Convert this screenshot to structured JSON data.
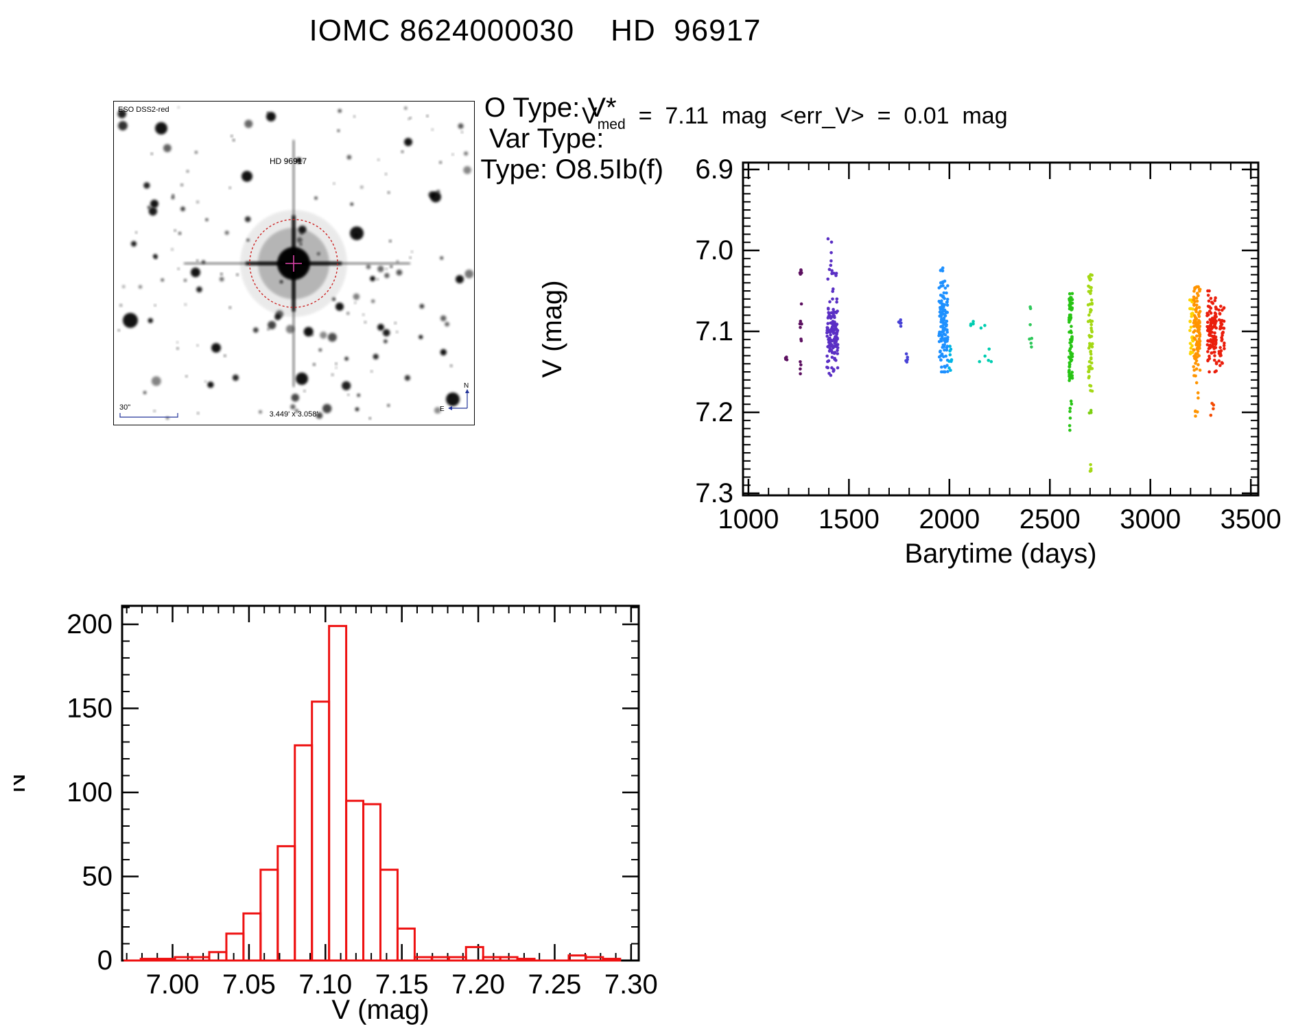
{
  "header": {
    "title": "IOMC 8624000030    HD  96917",
    "fields": [
      {
        "label": "O Type:",
        "value": "V*"
      },
      {
        "label": "Var Type:",
        "value": ""
      },
      {
        "label": "SP Type:",
        "value": "O8.5Ib(f)"
      }
    ],
    "stats": {
      "parts": [
        "V",
        "med",
        "  =  7.11  mag  ",
        "<err_V>",
        "  =  0.01  mag"
      ]
    }
  },
  "finder": {
    "star_label": "HD 96917",
    "survey_label": "ESO DSS2-red",
    "scale_label": "30\"",
    "fov_label": "3.449' x 3.058'",
    "compass_north": "N",
    "compass_east": "E",
    "annotation_color": "#223399",
    "marker_color": "#cc2222",
    "star_seed": 7,
    "star_count": 160,
    "big_stars": [
      [
        70,
        40,
        9
      ],
      [
        195,
        110,
        8
      ],
      [
        355,
        193,
        10
      ],
      [
        120,
        250,
        7
      ],
      [
        25,
        320,
        11
      ],
      [
        275,
        405,
        9
      ],
      [
        470,
        140,
        8
      ],
      [
        495,
        435,
        10
      ],
      [
        230,
        23,
        7
      ],
      [
        430,
        60,
        6
      ],
      [
        60,
        150,
        6
      ],
      [
        330,
        300,
        6
      ],
      [
        150,
        360,
        7
      ],
      [
        390,
        330,
        5
      ],
      [
        505,
        260,
        6
      ]
    ]
  },
  "chart_data": [
    {
      "id": "lightcurve",
      "type": "scatter",
      "title": "",
      "xlabel": "Barytime (days)",
      "ylabel": "V (mag)",
      "x_range": [
        973,
        3537
      ],
      "y_range": [
        6.8915,
        7.3025
      ],
      "y_inverted": true,
      "x_major_ticks": [
        1000,
        1500,
        2000,
        2500,
        3000,
        3500
      ],
      "x_minor_step": 100,
      "y_major_ticks": [
        6.9,
        7.0,
        7.1,
        7.2,
        7.3
      ],
      "y_minor_step": 0.01,
      "grid": false,
      "legend": false,
      "point_radius": 2.3,
      "seed": 42,
      "clusters": [
        {
          "t": [
            1183,
            1193
          ],
          "v": [
            7.125,
            7.14
          ],
          "n": 4,
          "color": "#5c1060",
          "dist": "uniform"
        },
        {
          "t": [
            1256,
            1266
          ],
          "v": [
            7.02,
            7.17
          ],
          "n": 16,
          "color": "#5c1060",
          "dist": "uniform"
        },
        {
          "t": [
            1390,
            1445
          ],
          "v": [
            7.06,
            7.145
          ],
          "n": 120,
          "color": "#5a2fc4",
          "dist": "normal"
        },
        {
          "t": [
            1395,
            1440
          ],
          "v": [
            6.975,
            7.06
          ],
          "n": 14,
          "color": "#5a2fc4",
          "dist": "uniform"
        },
        {
          "t": [
            1400,
            1435
          ],
          "v": [
            7.145,
            7.16
          ],
          "n": 5,
          "color": "#5a2fc4",
          "dist": "uniform"
        },
        {
          "t": [
            1745,
            1760
          ],
          "v": [
            7.085,
            7.095
          ],
          "n": 6,
          "color": "#4741d6",
          "dist": "uniform"
        },
        {
          "t": [
            1782,
            1792
          ],
          "v": [
            7.125,
            7.142
          ],
          "n": 5,
          "color": "#4741d6",
          "dist": "uniform"
        },
        {
          "t": [
            1948,
            1992
          ],
          "v": [
            7.04,
            7.15
          ],
          "n": 120,
          "color": "#1e90ff",
          "dist": "normal"
        },
        {
          "t": [
            1955,
            1985
          ],
          "v": [
            7.02,
            7.045
          ],
          "n": 8,
          "color": "#1e90ff",
          "dist": "uniform"
        },
        {
          "t": [
            1996,
            2012
          ],
          "v": [
            7.115,
            7.148
          ],
          "n": 9,
          "color": "#00b4e4",
          "dist": "uniform"
        },
        {
          "t": [
            2098,
            2120
          ],
          "v": [
            7.085,
            7.1
          ],
          "n": 5,
          "color": "#00cdb0",
          "dist": "uniform"
        },
        {
          "t": [
            2148,
            2210
          ],
          "v": [
            7.09,
            7.152
          ],
          "n": 7,
          "color": "#00cdb0",
          "dist": "uniform"
        },
        {
          "t": [
            2396,
            2410
          ],
          "v": [
            7.06,
            7.122
          ],
          "n": 7,
          "color": "#2ec85a",
          "dist": "uniform"
        },
        {
          "t": [
            2595,
            2612
          ],
          "v": [
            7.05,
            7.162
          ],
          "n": 85,
          "color": "#27c414",
          "dist": "column"
        },
        {
          "t": [
            2598,
            2610
          ],
          "v": [
            7.185,
            7.225
          ],
          "n": 7,
          "color": "#27c414",
          "dist": "uniform"
        },
        {
          "t": [
            2690,
            2712
          ],
          "v": [
            7.025,
            7.175
          ],
          "n": 60,
          "color": "#a4d814",
          "dist": "column"
        },
        {
          "t": [
            2696,
            2706
          ],
          "v": [
            7.195,
            7.205
          ],
          "n": 3,
          "color": "#7ccf10",
          "dist": "uniform"
        },
        {
          "t": [
            2698,
            2708
          ],
          "v": [
            7.258,
            7.275
          ],
          "n": 4,
          "color": "#a4d814",
          "dist": "uniform"
        },
        {
          "t": [
            3196,
            3212
          ],
          "v": [
            7.06,
            7.13
          ],
          "n": 26,
          "color": "#ffd300",
          "dist": "column"
        },
        {
          "t": [
            3214,
            3248
          ],
          "v": [
            7.045,
            7.155
          ],
          "n": 110,
          "color": "#ff9400",
          "dist": "normal"
        },
        {
          "t": [
            3220,
            3240
          ],
          "v": [
            7.16,
            7.215
          ],
          "n": 7,
          "color": "#ff9400",
          "dist": "uniform"
        },
        {
          "t": [
            3282,
            3330
          ],
          "v": [
            7.05,
            7.15
          ],
          "n": 110,
          "color": "#ea1e0c",
          "dist": "normal"
        },
        {
          "t": [
            3340,
            3368
          ],
          "v": [
            7.06,
            7.145
          ],
          "n": 45,
          "color": "#ea1e0c",
          "dist": "column"
        },
        {
          "t": [
            3300,
            3315
          ],
          "v": [
            7.188,
            7.205
          ],
          "n": 4,
          "color": "#f44a00",
          "dist": "uniform"
        }
      ]
    },
    {
      "id": "vmag_histogram",
      "type": "bar",
      "title": "",
      "xlabel": "V (mag)",
      "ylabel": "N",
      "x_range": [
        6.967,
        7.305
      ],
      "y_range": [
        0,
        211
      ],
      "x_major_ticks": [
        7.0,
        7.05,
        7.1,
        7.15,
        7.2,
        7.25,
        7.3
      ],
      "x_minor_step": 0.01,
      "y_major_ticks": [
        0,
        50,
        100,
        150,
        200
      ],
      "y_minor_step": 10,
      "grid": false,
      "bar_color": "#ee1111",
      "bin_start": 6.968,
      "bin_width": 0.0112,
      "counts": [
        0,
        1,
        1,
        2,
        2,
        5,
        16,
        28,
        54,
        68,
        128,
        154,
        199,
        95,
        93,
        54,
        19,
        2,
        2,
        2,
        8,
        2,
        2,
        1,
        0,
        0,
        3,
        2,
        1
      ]
    }
  ]
}
